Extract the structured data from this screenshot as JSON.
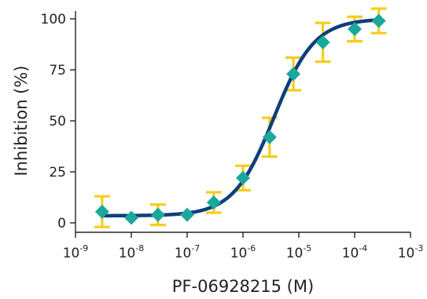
{
  "chart_data": {
    "type": "scatter",
    "xlabel": "PF-06928215 (M)",
    "ylabel": "Inhibition (%)",
    "xscale": "log",
    "xlim": [
      1e-09,
      0.001
    ],
    "ylim": [
      0,
      100
    ],
    "x_ticks": [
      {
        "base": "10",
        "exp": "-9"
      },
      {
        "base": "10",
        "exp": "-8"
      },
      {
        "base": "10",
        "exp": "-7"
      },
      {
        "base": "10",
        "exp": "-6"
      },
      {
        "base": "10",
        "exp": "-5"
      },
      {
        "base": "10",
        "exp": "-4"
      },
      {
        "base": "10",
        "exp": "-3"
      }
    ],
    "y_ticks": [
      "0",
      "25",
      "50",
      "75",
      "100"
    ],
    "points": [
      {
        "x": 3e-09,
        "y": 5.5,
        "err": 7.5
      },
      {
        "x": 1e-08,
        "y": 2.5,
        "err": 0
      },
      {
        "x": 3e-08,
        "y": 4,
        "err": 5
      },
      {
        "x": 1e-07,
        "y": 4,
        "err": 0
      },
      {
        "x": 3e-07,
        "y": 10,
        "err": 5
      },
      {
        "x": 1e-06,
        "y": 22,
        "err": 6
      },
      {
        "x": 3e-06,
        "y": 42,
        "err": 9.5
      },
      {
        "x": 8e-06,
        "y": 73,
        "err": 8
      },
      {
        "x": 2.7e-05,
        "y": 88.5,
        "err": 9.5
      },
      {
        "x": 0.0001,
        "y": 95,
        "err": 6
      },
      {
        "x": 0.00027,
        "y": 99,
        "err": 6
      }
    ],
    "fit": {
      "bottom": 3.5,
      "top": 100,
      "ec50": 3.6e-06,
      "hill": 1.2
    },
    "colors": {
      "curve": "#0d3f7a",
      "marker": "#1aa89a",
      "error_bar": "#f5cd1f",
      "axis": "#222222"
    },
    "grid": false
  }
}
